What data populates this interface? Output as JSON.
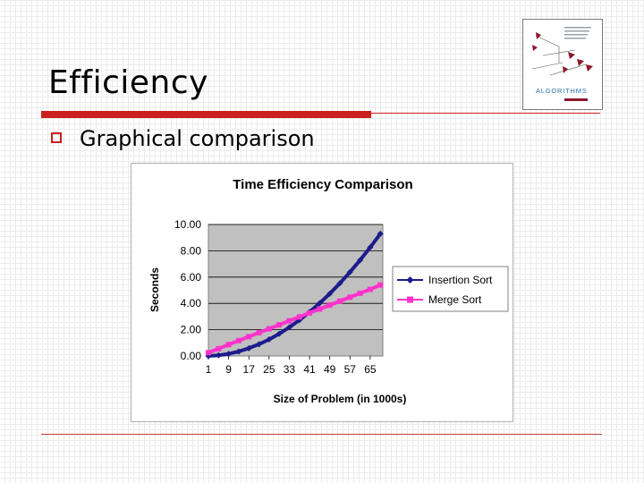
{
  "slide": {
    "title": "Efficiency",
    "bullet": "Graphical comparison"
  },
  "book_cover": {
    "title_word": "ALGORITHMS",
    "colors": {
      "accent": "#8b1a2b",
      "band": "#2e6fa8"
    }
  },
  "chart_data": {
    "type": "line",
    "title": "Time Efficiency Comparison",
    "xlabel": "Size of Problem (in 1000s)",
    "ylabel": "Seconds",
    "x_ticks": [
      "1",
      "9",
      "17",
      "25",
      "33",
      "41",
      "49",
      "57",
      "65"
    ],
    "y_ticks": [
      "0.00",
      "2.00",
      "4.00",
      "6.00",
      "8.00",
      "10.00"
    ],
    "xlim": [
      1,
      70
    ],
    "ylim": [
      0,
      10
    ],
    "grid": true,
    "legend": "right",
    "series": [
      {
        "name": "Insertion Sort",
        "color": "#1c1c8c",
        "marker": "diamond",
        "x": [
          1,
          5,
          9,
          13,
          17,
          21,
          25,
          29,
          33,
          37,
          41,
          45,
          49,
          53,
          57,
          61,
          65,
          69
        ],
        "values": [
          0.0,
          0.05,
          0.16,
          0.34,
          0.59,
          0.89,
          1.26,
          1.69,
          2.18,
          2.73,
          3.34,
          4.01,
          4.74,
          5.53,
          6.38,
          7.29,
          8.26,
          9.29
        ]
      },
      {
        "name": "Merge Sort",
        "color": "#ff33cc",
        "marker": "square",
        "x": [
          1,
          5,
          9,
          13,
          17,
          21,
          25,
          29,
          33,
          37,
          41,
          45,
          49,
          53,
          57,
          61,
          65,
          69
        ],
        "values": [
          0.25,
          0.55,
          0.87,
          1.17,
          1.47,
          1.77,
          2.07,
          2.37,
          2.67,
          2.97,
          3.27,
          3.57,
          3.87,
          4.17,
          4.47,
          4.77,
          5.07,
          5.4
        ]
      }
    ]
  }
}
